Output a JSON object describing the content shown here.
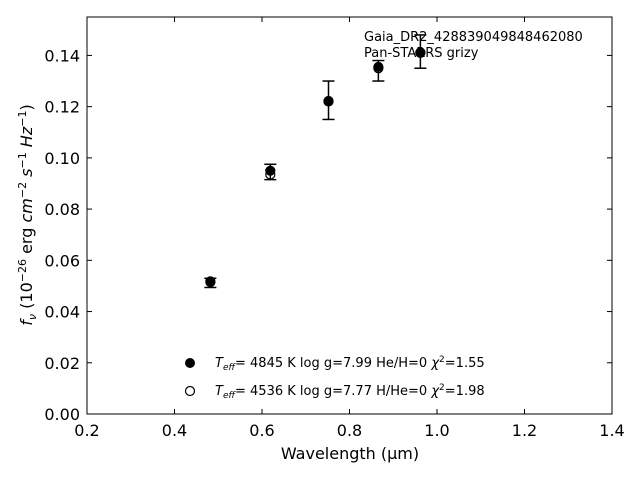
{
  "chart_data": {
    "type": "scatter",
    "xlabel": "Wavelength (μm)",
    "ylabel_parts": {
      "main": "f",
      "sub": "ν",
      "units": " (10",
      "exp1": "−26",
      "erg": " erg ",
      "cm": "cm",
      "exp2": "−2",
      "s": " s",
      "exp3": "−1",
      "hz": " Hz",
      "exp4": "−1",
      "close": ")"
    },
    "xlim": [
      0.2,
      1.4
    ],
    "ylim": [
      0.0,
      0.155
    ],
    "xticks": [
      "0.2",
      "0.4",
      "0.6",
      "0.8",
      "1.0",
      "1.2",
      "1.4"
    ],
    "yticks": [
      "0.00",
      "0.02",
      "0.04",
      "0.06",
      "0.08",
      "0.10",
      "0.12",
      "0.14"
    ],
    "annotation_lines": [
      "Gaia_DR2_428839049848462080",
      "Pan-STARRS grizy"
    ],
    "observed": {
      "x": [
        0.482,
        0.619,
        0.752,
        0.866,
        0.962
      ],
      "y": [
        0.0512,
        0.0945,
        0.1225,
        0.134,
        0.1415
      ],
      "err": [
        0.0018,
        0.003,
        0.0075,
        0.004,
        0.0065
      ]
    },
    "series": [
      {
        "marker": "filled",
        "legend": {
          "teff": "4845 K",
          "logg": "log g=7.99",
          "comp": "He/H=0",
          "chi2": "=1.55"
        },
        "x": [
          0.482,
          0.619,
          0.752,
          0.866,
          0.962
        ],
        "y": [
          0.0518,
          0.095,
          0.122,
          0.1355,
          0.141
        ]
      },
      {
        "marker": "open",
        "legend": {
          "teff": "4536 K",
          "logg": "log g=7.77",
          "comp": "H/He=0",
          "chi2": "=1.98"
        },
        "x": [
          0.482,
          0.619,
          0.752,
          0.866,
          0.962
        ],
        "y": [
          0.0515,
          0.0935,
          0.1222,
          0.135,
          0.1412
        ]
      }
    ]
  }
}
